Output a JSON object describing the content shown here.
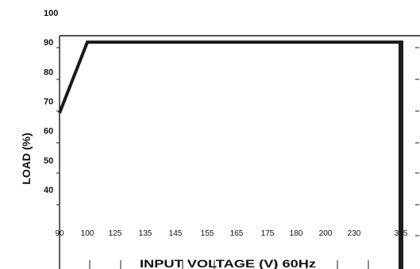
{
  "chart_data": {
    "type": "line",
    "xlabel": "INPUT VOLTAGE (V) 60Hz",
    "ylabel": "LOAD (%)",
    "y_tick_labels": [
      "40",
      "50",
      "60",
      "70",
      "80",
      "90",
      "100"
    ],
    "x_tick_labels": [
      "90",
      "100",
      "125",
      "135",
      "145",
      "155",
      "165",
      "175",
      "180",
      "200",
      "230",
      "305"
    ],
    "ylim": [
      40,
      100
    ],
    "grid": false,
    "series": [
      {
        "x": [
          "90",
          "100",
          "305"
        ],
        "y": [
          66,
          90,
          90
        ]
      }
    ],
    "colors": {
      "line": "#1a1a1a",
      "frame": "#1a1a1a",
      "text": "#111111"
    }
  }
}
